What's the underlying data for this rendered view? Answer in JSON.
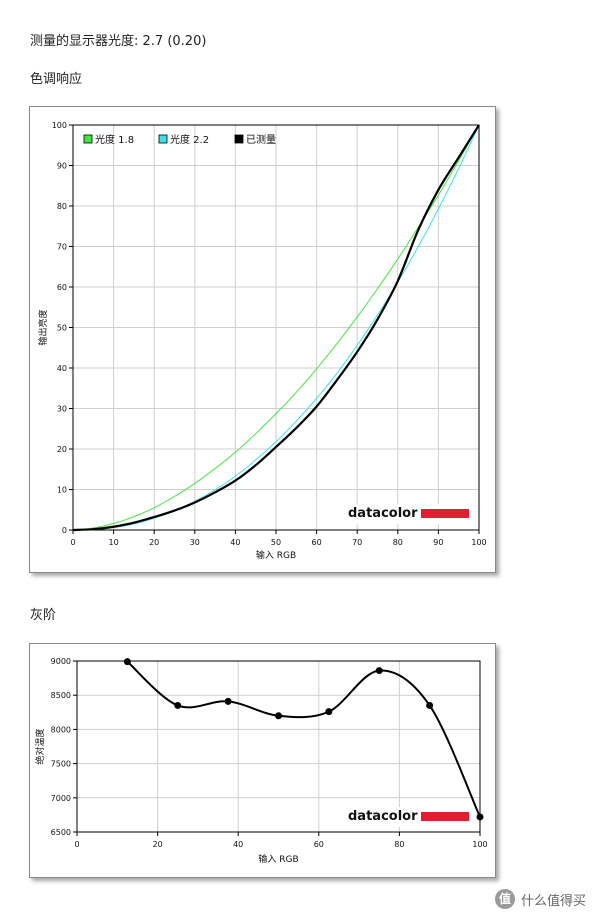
{
  "header": {
    "measured_gamma": "测量的显示器光度: 2.7 (0.20)",
    "tone_response_title": "色调响应",
    "grayscale_title": "灰阶"
  },
  "colors": {
    "gamma_18": "#44e644",
    "gamma_22": "#40e0e8",
    "measured": "#000000",
    "grid": "#cfcfcf",
    "logo_bar": "#e02030"
  },
  "watermark": {
    "badge": "值",
    "text": "什么值得买"
  },
  "chart_data": [
    {
      "type": "line",
      "xlabel": "输入 RGB",
      "ylabel": "输出亮度",
      "xlim": [
        0,
        100
      ],
      "ylim": [
        0,
        100
      ],
      "x_ticks": [
        "0",
        "10",
        "20",
        "30",
        "40",
        "50",
        "60",
        "70",
        "80",
        "90",
        "100"
      ],
      "y_ticks": [
        "0",
        "10",
        "20",
        "30",
        "40",
        "50",
        "60",
        "70",
        "80",
        "90",
        "100"
      ],
      "grid": true,
      "legend_position": "top-left",
      "logo": "datacolor",
      "series": [
        {
          "name": "光度 1.8",
          "color": "#44e644",
          "x": [
            0,
            5,
            10,
            15,
            20,
            25,
            30,
            35,
            40,
            45,
            50,
            55,
            60,
            65,
            70,
            75,
            80,
            85,
            90,
            95,
            100
          ],
          "y": [
            0,
            0.5,
            1.6,
            3.3,
            5.5,
            8.3,
            11.5,
            15.2,
            19.2,
            23.8,
            28.7,
            34.0,
            39.8,
            46.0,
            52.6,
            59.6,
            66.9,
            74.7,
            82.7,
            91.2,
            100
          ]
        },
        {
          "name": "光度 2.2",
          "color": "#40e0e8",
          "x": [
            0,
            5,
            10,
            15,
            20,
            25,
            30,
            35,
            40,
            45,
            50,
            55,
            60,
            65,
            70,
            75,
            80,
            85,
            90,
            95,
            100
          ],
          "y": [
            0,
            0.1,
            0.6,
            1.5,
            2.9,
            4.7,
            7.1,
            9.9,
            13.3,
            17.3,
            21.8,
            26.9,
            32.5,
            38.7,
            45.6,
            53.1,
            61.2,
            69.9,
            79.3,
            89.3,
            100
          ]
        },
        {
          "name": "已测量",
          "color": "#000000",
          "x": [
            0,
            5,
            10,
            15,
            20,
            25,
            30,
            35,
            40,
            45,
            50,
            55,
            60,
            65,
            70,
            75,
            80,
            85,
            90,
            95,
            100
          ],
          "y": [
            0,
            0.2,
            0.8,
            1.8,
            3.2,
            4.8,
            6.8,
            9.3,
            12.2,
            16.0,
            20.5,
            25.2,
            30.5,
            37.0,
            44.0,
            52.0,
            61.5,
            74.0,
            84.0,
            92.0,
            100
          ]
        }
      ]
    },
    {
      "type": "line",
      "xlabel": "输入 RGB",
      "ylabel": "绝对温度",
      "xlim": [
        0,
        100
      ],
      "ylim": [
        6500,
        9000
      ],
      "x_ticks": [
        "0",
        "20",
        "40",
        "60",
        "80",
        "100"
      ],
      "y_ticks": [
        "6500",
        "7000",
        "7500",
        "8000",
        "8500",
        "9000"
      ],
      "grid": true,
      "logo": "datacolor",
      "series": [
        {
          "name": "",
          "color": "#000000",
          "x": [
            12.5,
            25,
            37.5,
            50,
            62.5,
            75,
            87.5,
            100
          ],
          "y": [
            8990,
            8350,
            8410,
            8200,
            8260,
            8860,
            8350,
            6720
          ]
        }
      ]
    }
  ]
}
